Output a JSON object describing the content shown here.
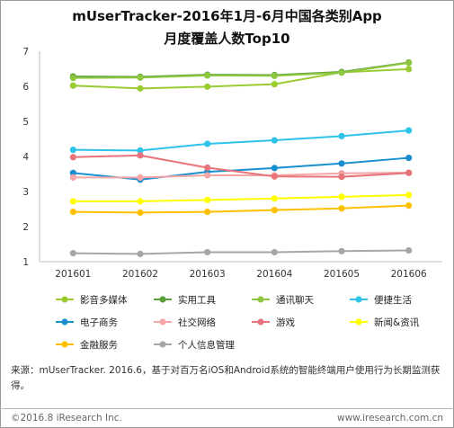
{
  "title_lines": [
    "mUserTracker-2016年1月-6月中国各类别App",
    "月度覆盖人数Top10"
  ],
  "note_lines": [
    "来源：mUserTracker. 2016.6，基于对百万名iOS和Android系统的智能终端用户使用行为长期监测获得。"
  ],
  "footer": {
    "left": "©2016.8 iResearch Inc.",
    "right": "www.iresearch.com.cn"
  },
  "chart_data": {
    "type": "line",
    "title": "mUserTracker-2016年1月-6月中国各类别App月度覆盖人数Top10",
    "xlabel": "",
    "ylabel": "",
    "ylim": [
      1,
      7
    ],
    "yticks": [
      1,
      2,
      3,
      4,
      5,
      6,
      7
    ],
    "categories": [
      "201601",
      "201602",
      "201603",
      "201604",
      "201605",
      "201606"
    ],
    "grid": false,
    "legend_position": "bottom",
    "series": [
      {
        "name": "影音多媒体",
        "color": "#9acd32",
        "values": [
          6.02,
          5.94,
          5.99,
          6.06,
          6.4,
          6.49
        ]
      },
      {
        "name": "实用工具",
        "color": "#5a9e3a",
        "values": [
          6.28,
          6.27,
          6.33,
          6.32,
          6.41,
          6.68
        ]
      },
      {
        "name": "通讯聊天",
        "color": "#8dc63f",
        "values": [
          6.24,
          6.25,
          6.31,
          6.3,
          6.39,
          6.67
        ]
      },
      {
        "name": "便捷生活",
        "color": "#2ec4ea",
        "values": [
          4.19,
          4.17,
          4.36,
          4.46,
          4.58,
          4.74
        ]
      },
      {
        "name": "电子商务",
        "color": "#1a8fd0",
        "values": [
          3.53,
          3.34,
          3.56,
          3.67,
          3.8,
          3.96
        ]
      },
      {
        "name": "社交网络",
        "color": "#f4a6a6",
        "values": [
          3.4,
          3.4,
          3.46,
          3.46,
          3.52,
          3.54
        ]
      },
      {
        "name": "游戏",
        "color": "#e8737a",
        "values": [
          3.98,
          4.03,
          3.68,
          3.43,
          3.42,
          3.53
        ]
      },
      {
        "name": "新闻&资讯",
        "color": "#ffff00",
        "values": [
          2.72,
          2.72,
          2.76,
          2.8,
          2.85,
          2.9
        ]
      },
      {
        "name": "金融服务",
        "color": "#ffc000",
        "values": [
          2.42,
          2.4,
          2.42,
          2.47,
          2.52,
          2.6
        ]
      },
      {
        "name": "个人信息管理",
        "color": "#a6a6a6",
        "values": [
          1.24,
          1.22,
          1.27,
          1.27,
          1.3,
          1.32
        ]
      }
    ]
  }
}
